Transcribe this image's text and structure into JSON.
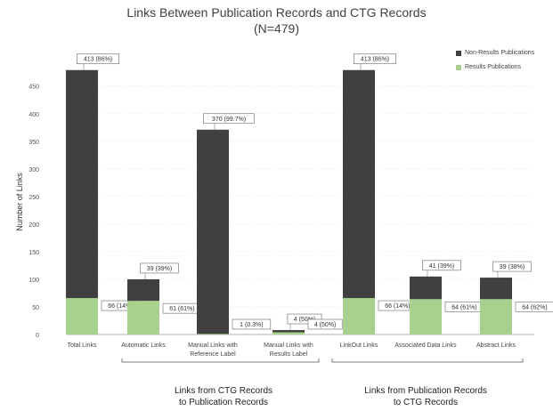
{
  "chart_data": {
    "type": "bar",
    "stacked": true,
    "title": "Links Between Publication Records and CTG Records",
    "subtitle": "(N=479)",
    "ylabel": "Number of Links",
    "ylim": [
      0,
      479
    ],
    "yticks": [
      0,
      50,
      100,
      150,
      200,
      250,
      300,
      350,
      400,
      450
    ],
    "grid": true,
    "legend_position": "top-right",
    "categories": [
      "Total Links",
      "Automatic Links",
      "Manual Links with\nReference Label",
      "Manual Links with\nResults Label",
      "LinkOut Links",
      "Associated Data Links",
      "Abstract Links"
    ],
    "series": [
      {
        "name": "Results Publications",
        "color": "#a9d18e",
        "values": [
          66,
          61,
          1,
          4,
          66,
          64,
          64
        ],
        "labels": [
          "66 (14%)",
          "61 (61%)",
          "1 (0.3%)",
          "4 (50%)",
          "66 (14%)",
          "64 (61%)",
          "64 (62%)"
        ]
      },
      {
        "name": "Non-Results Publications",
        "color": "#404040",
        "values": [
          413,
          39,
          370,
          4,
          413,
          41,
          39
        ],
        "labels": [
          "413 (86%)",
          "39 (39%)",
          "370 (99.7%)",
          "4 (50%)",
          "413 (86%)",
          "41 (39%)",
          "39 (38%)"
        ]
      }
    ],
    "groups": [
      {
        "label_line1": "Links from CTG Records",
        "label_line2": "to Publication Records",
        "categories": [
          1,
          2,
          3
        ]
      },
      {
        "label_line1": "Links from Publication Records",
        "label_line2": "to CTG Records",
        "categories": [
          4,
          5,
          6
        ]
      }
    ]
  }
}
